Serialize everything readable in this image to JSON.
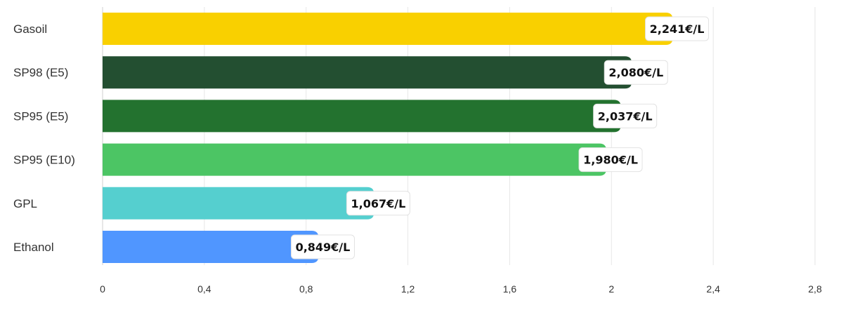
{
  "chart_data": {
    "type": "bar",
    "orientation": "horizontal",
    "categories": [
      "Gasoil",
      "SP98 (E5)",
      "SP95 (E5)",
      "SP95 (E10)",
      "GPL",
      "Ethanol"
    ],
    "values": [
      2.241,
      2.08,
      2.037,
      1.98,
      1.067,
      0.849
    ],
    "value_labels": [
      "2,241€/L",
      "2,080€/L",
      "2,037€/L",
      "1,980€/L",
      "1,067€/L",
      "0,849€/L"
    ],
    "colors": [
      "#F9D000",
      "#234F31",
      "#23722F",
      "#4CC564",
      "#55CFCF",
      "#5096FF"
    ],
    "xlim": [
      0,
      2.8
    ],
    "xticks": [
      0,
      0.4,
      0.8,
      1.2,
      1.6,
      2,
      2.4,
      2.8
    ],
    "xtick_labels": [
      "0",
      "0,4",
      "0,8",
      "1,2",
      "1,6",
      "2",
      "2,4",
      "2,8"
    ],
    "grid": true,
    "title": "",
    "xlabel": "",
    "ylabel": ""
  }
}
